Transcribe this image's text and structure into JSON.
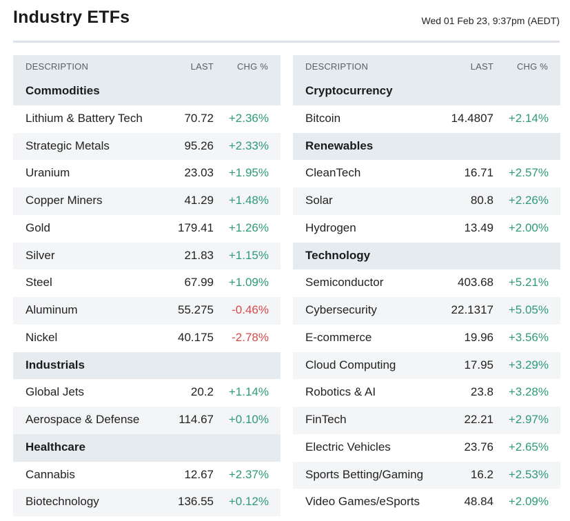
{
  "header": {
    "title": "Industry ETFs",
    "timestamp": "Wed 01 Feb 23, 9:37pm (AEDT)"
  },
  "columns": {
    "description": "DESCRIPTION",
    "last": "LAST",
    "change": "CHG %"
  },
  "colors": {
    "positive": "#2e9a7a",
    "negative": "#d94a4a",
    "header_bg": "#e6ebf0",
    "alt_row_bg": "#f3f5f7"
  },
  "left_table": [
    {
      "type": "section",
      "name": "Commodities"
    },
    {
      "type": "row",
      "name": "Lithium & Battery Tech",
      "last": "70.72",
      "change": "+2.36%"
    },
    {
      "type": "row",
      "name": "Strategic Metals",
      "last": "95.26",
      "change": "+2.33%"
    },
    {
      "type": "row",
      "name": "Uranium",
      "last": "23.03",
      "change": "+1.95%"
    },
    {
      "type": "row",
      "name": "Copper Miners",
      "last": "41.29",
      "change": "+1.48%"
    },
    {
      "type": "row",
      "name": "Gold",
      "last": "179.41",
      "change": "+1.26%"
    },
    {
      "type": "row",
      "name": "Silver",
      "last": "21.83",
      "change": "+1.15%"
    },
    {
      "type": "row",
      "name": "Steel",
      "last": "67.99",
      "change": "+1.09%"
    },
    {
      "type": "row",
      "name": "Aluminum",
      "last": "55.275",
      "change": "-0.46%"
    },
    {
      "type": "row",
      "name": "Nickel",
      "last": "40.175",
      "change": "-2.78%"
    },
    {
      "type": "section",
      "name": "Industrials"
    },
    {
      "type": "row",
      "name": "Global Jets",
      "last": "20.2",
      "change": "+1.14%"
    },
    {
      "type": "row",
      "name": "Aerospace & Defense",
      "last": "114.67",
      "change": "+0.10%"
    },
    {
      "type": "section",
      "name": "Healthcare"
    },
    {
      "type": "row",
      "name": "Cannabis",
      "last": "12.67",
      "change": "+2.37%"
    },
    {
      "type": "row",
      "name": "Biotechnology",
      "last": "136.55",
      "change": "+0.12%"
    }
  ],
  "right_table": [
    {
      "type": "section",
      "name": "Cryptocurrency"
    },
    {
      "type": "row",
      "name": "Bitcoin",
      "last": "14.4807",
      "change": "+2.14%"
    },
    {
      "type": "section",
      "name": "Renewables"
    },
    {
      "type": "row",
      "name": "CleanTech",
      "last": "16.71",
      "change": "+2.57%"
    },
    {
      "type": "row",
      "name": "Solar",
      "last": "80.8",
      "change": "+2.26%"
    },
    {
      "type": "row",
      "name": "Hydrogen",
      "last": "13.49",
      "change": "+2.00%"
    },
    {
      "type": "section",
      "name": "Technology"
    },
    {
      "type": "row",
      "name": "Semiconductor",
      "last": "403.68",
      "change": "+5.21%"
    },
    {
      "type": "row",
      "name": "Cybersecurity",
      "last": "22.1317",
      "change": "+5.05%"
    },
    {
      "type": "row",
      "name": "E-commerce",
      "last": "19.96",
      "change": "+3.56%"
    },
    {
      "type": "row",
      "name": "Cloud Computing",
      "last": "17.95",
      "change": "+3.29%"
    },
    {
      "type": "row",
      "name": "Robotics & AI",
      "last": "23.8",
      "change": "+3.28%"
    },
    {
      "type": "row",
      "name": "FinTech",
      "last": "22.21",
      "change": "+2.97%"
    },
    {
      "type": "row",
      "name": "Electric Vehicles",
      "last": "23.76",
      "change": "+2.65%"
    },
    {
      "type": "row",
      "name": "Sports Betting/Gaming",
      "last": "16.2",
      "change": "+2.53%"
    },
    {
      "type": "row",
      "name": "Video Games/eSports",
      "last": "48.84",
      "change": "+2.09%"
    }
  ]
}
